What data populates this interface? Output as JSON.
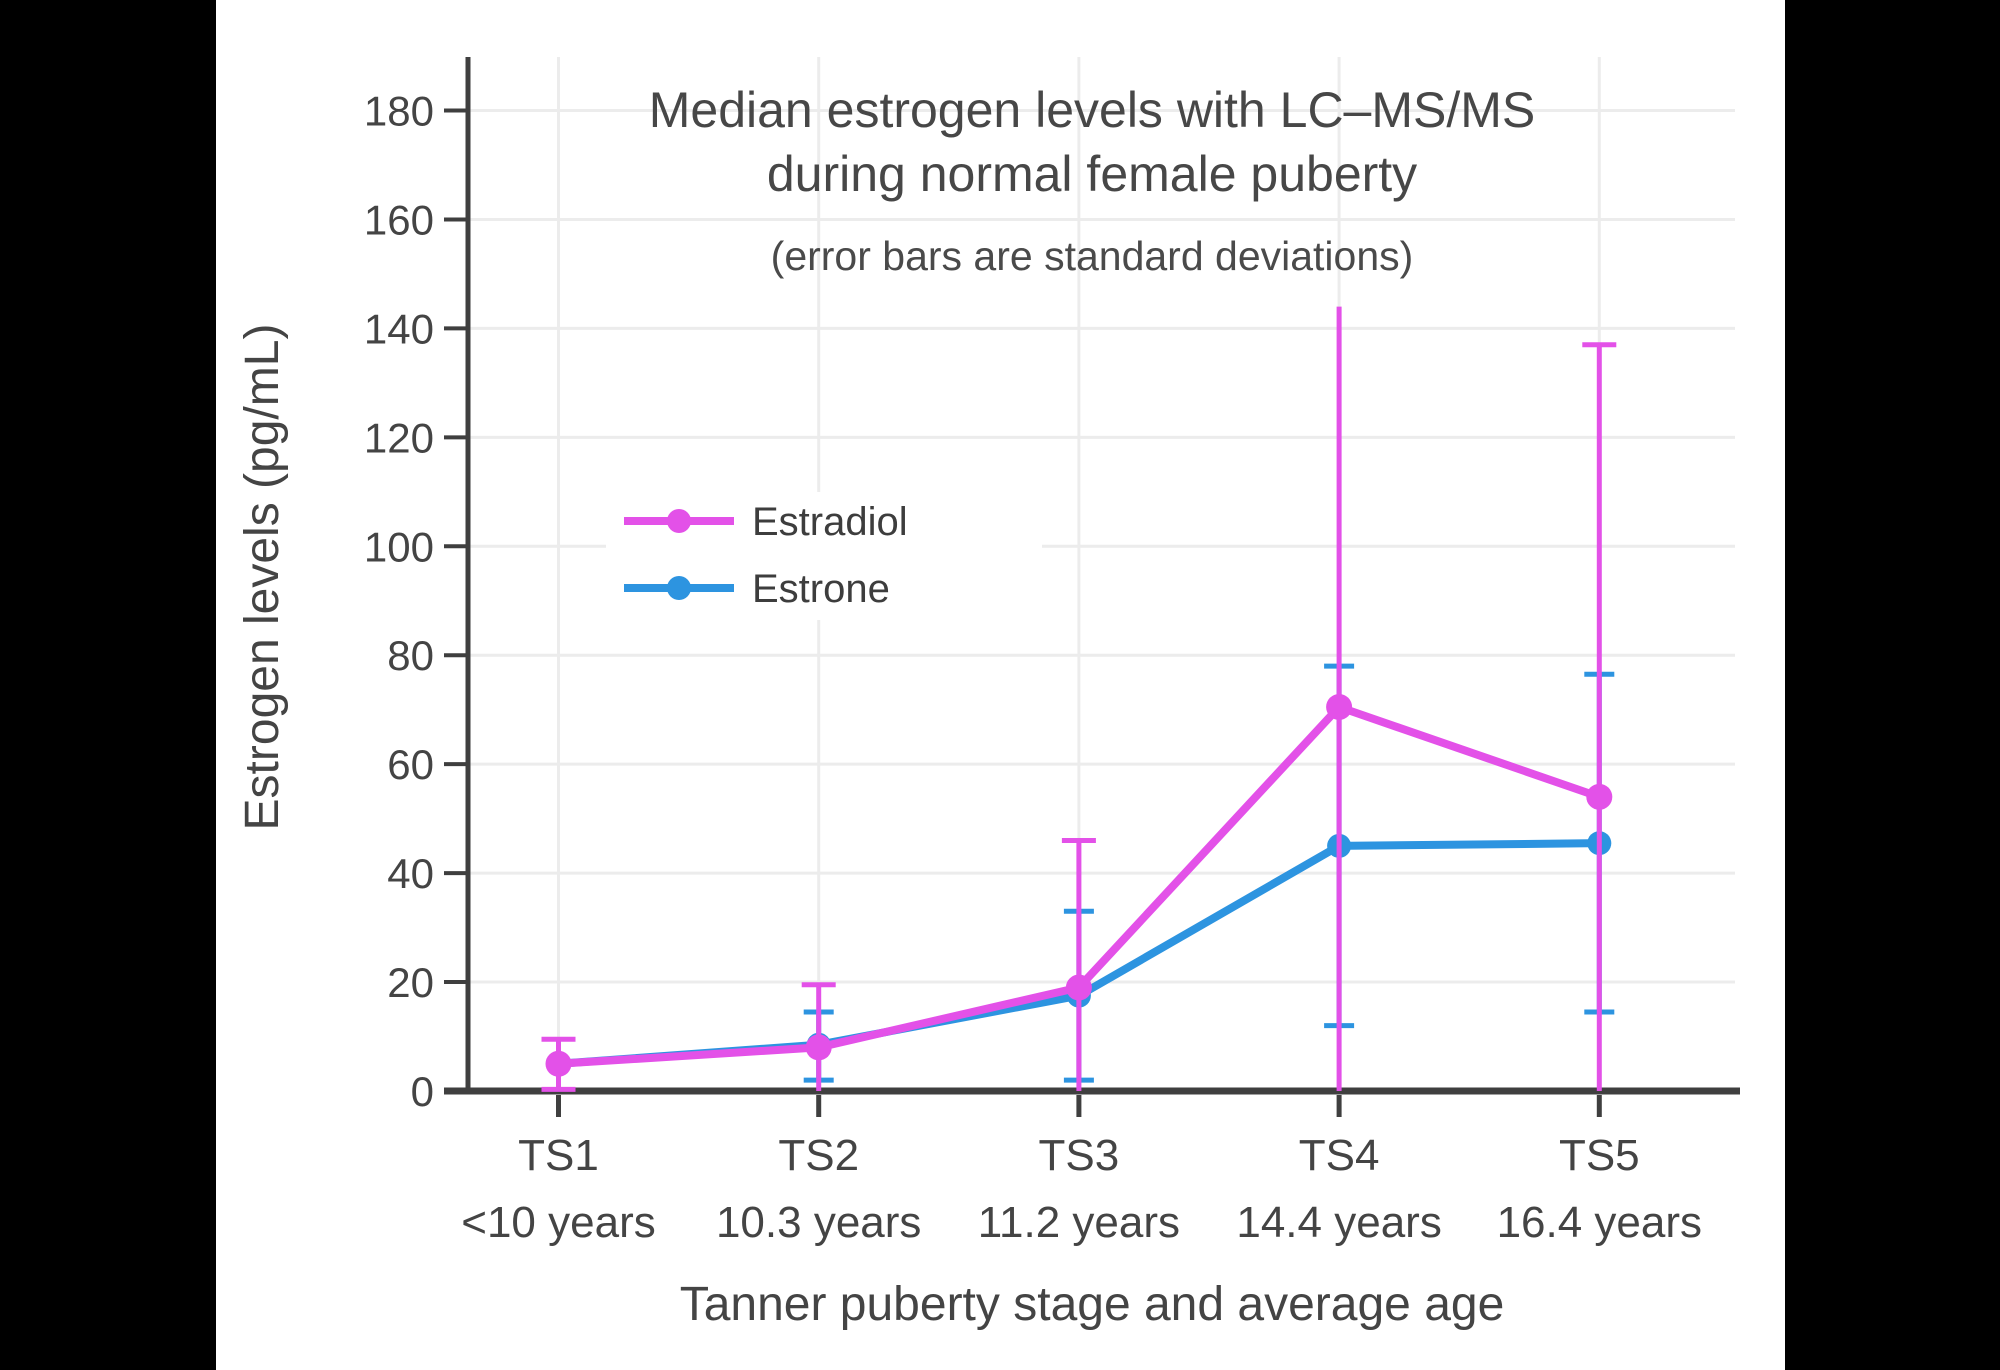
{
  "chart_data": {
    "type": "line",
    "title": "Median estrogen levels with LC–MS/MS",
    "title_line2": "during normal female puberty",
    "subtitle": "(error bars are standard deviations)",
    "xlabel": "Tanner puberty stage and average age",
    "ylabel": "Estrogen levels (pg/mL)",
    "ylim": [
      0,
      190
    ],
    "yticks": [
      0,
      20,
      40,
      60,
      80,
      100,
      120,
      140,
      160,
      180
    ],
    "categories": [
      "TS1",
      "TS2",
      "TS3",
      "TS4",
      "TS5"
    ],
    "category_sublabels": [
      "<10 years",
      "10.3 years",
      "11.2 years",
      "14.4 years",
      "16.4 years"
    ],
    "grid": true,
    "legend_position": "inside-upper-left",
    "error_bar_note": "standard deviations",
    "series": [
      {
        "name": "Estradiol",
        "color": "#E351E8",
        "values": [
          5,
          8,
          19,
          70.5,
          54
        ],
        "error_hi": [
          9.5,
          19.5,
          46,
          144,
          137
        ],
        "error_lo": [
          0.3,
          0,
          0,
          0,
          0
        ],
        "cap_hi": [
          true,
          true,
          true,
          false,
          true
        ],
        "cap_lo": [
          true,
          false,
          false,
          false,
          false
        ]
      },
      {
        "name": "Estrone",
        "color": "#2D94E0",
        "values": [
          5,
          8.5,
          17.5,
          45,
          45.5
        ],
        "error_hi": [
          null,
          14.5,
          33,
          78,
          76.5
        ],
        "error_lo": [
          null,
          2,
          2,
          12,
          14.5
        ],
        "cap_hi": [
          false,
          true,
          true,
          true,
          true
        ],
        "cap_lo": [
          false,
          true,
          true,
          true,
          true
        ]
      }
    ],
    "colors": {
      "axis": "#3F3F3F",
      "gridline": "#ECECEC",
      "text": "#444444",
      "plot_background": "#FFFFFF",
      "page_side_bars": "#000000"
    }
  }
}
